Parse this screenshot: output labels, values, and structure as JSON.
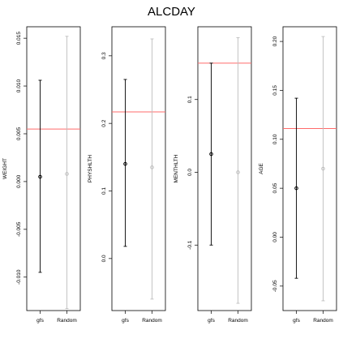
{
  "title": "ALCDAY",
  "colors": {
    "gfs": "#000000",
    "random": "#bebebe",
    "reference_line": "#ff6b6b",
    "frame": "#000000"
  },
  "chart_data": [
    {
      "type": "scatter",
      "subtype": "point-with-interval",
      "ylabel": "WEIGHT",
      "categories": [
        "gfs",
        "Random"
      ],
      "ylim": [
        -0.0135,
        0.0162
      ],
      "yticks": [
        -0.01,
        -0.005,
        0.0,
        0.005,
        0.01,
        0.015
      ],
      "ytick_labels": [
        "-0.010",
        "-0.005",
        "0.000",
        "0.005",
        "0.010",
        "0.015"
      ],
      "reference_line": 0.0055,
      "series": [
        {
          "category": "gfs",
          "estimate": 0.0005,
          "lower": -0.0095,
          "upper": 0.0106
        },
        {
          "category": "Random",
          "estimate": 0.0008,
          "lower": -0.0133,
          "upper": 0.0152
        }
      ]
    },
    {
      "type": "scatter",
      "subtype": "point-with-interval",
      "ylabel": "PHYSHLTH",
      "categories": [
        "gfs",
        "Random"
      ],
      "ylim": [
        -0.077,
        0.343
      ],
      "yticks": [
        0.0,
        0.1,
        0.2,
        0.3
      ],
      "ytick_labels": [
        "0.0",
        "0.1",
        "0.2",
        "0.3"
      ],
      "reference_line": 0.217,
      "series": [
        {
          "category": "gfs",
          "estimate": 0.14,
          "lower": 0.018,
          "upper": 0.265
        },
        {
          "category": "Random",
          "estimate": 0.135,
          "lower": -0.06,
          "upper": 0.325
        }
      ]
    },
    {
      "type": "scatter",
      "subtype": "point-with-interval",
      "ylabel": "MENTHLTH",
      "categories": [
        "gfs",
        "Random"
      ],
      "ylim": [
        -0.19,
        0.2
      ],
      "yticks": [
        -0.1,
        0.0,
        0.1
      ],
      "ytick_labels": [
        "-0.1",
        "0.0",
        "0.1"
      ],
      "reference_line": 0.15,
      "series": [
        {
          "category": "gfs",
          "estimate": 0.025,
          "lower": -0.1,
          "upper": 0.15
        },
        {
          "category": "Random",
          "estimate": 0.0,
          "lower": -0.18,
          "upper": 0.185
        }
      ]
    },
    {
      "type": "scatter",
      "subtype": "point-with-interval",
      "ylabel": "AGE",
      "categories": [
        "gfs",
        "Random"
      ],
      "ylim": [
        -0.075,
        0.215
      ],
      "yticks": [
        -0.05,
        0.0,
        0.05,
        0.1,
        0.15,
        0.2
      ],
      "ytick_labels": [
        "-0.05",
        "0.00",
        "0.05",
        "0.10",
        "0.15",
        "0.20"
      ],
      "reference_line": 0.111,
      "series": [
        {
          "category": "gfs",
          "estimate": 0.05,
          "lower": -0.042,
          "upper": 0.142
        },
        {
          "category": "Random",
          "estimate": 0.07,
          "lower": -0.065,
          "upper": 0.205
        }
      ]
    }
  ]
}
